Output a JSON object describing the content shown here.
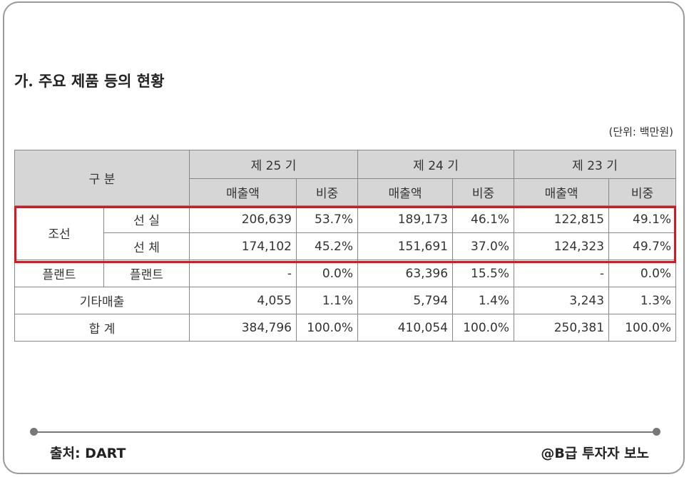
{
  "title": "가. 주요 제품 등의 현황",
  "unit": "(단위: 백만원)",
  "table": {
    "header_category": "구 분",
    "periods": [
      "제 25 기",
      "제 24 기",
      "제 23 기"
    ],
    "sub_headers": [
      "매출액",
      "비중"
    ],
    "rows": [
      {
        "group": "조선",
        "item": "선 실",
        "values": [
          "206,639",
          "53.7%",
          "189,173",
          "46.1%",
          "122,815",
          "49.1%"
        ]
      },
      {
        "group": "조선",
        "item": "선 체",
        "values": [
          "174,102",
          "45.2%",
          "151,691",
          "37.0%",
          "124,323",
          "49.7%"
        ]
      },
      {
        "group": "플랜트",
        "item": "플랜트",
        "values": [
          "-",
          "0.0%",
          "63,396",
          "15.5%",
          "-",
          "0.0%"
        ]
      },
      {
        "label": "기타매출",
        "values": [
          "4,055",
          "1.1%",
          "5,794",
          "1.4%",
          "3,243",
          "1.3%"
        ]
      },
      {
        "label": "합 계",
        "values": [
          "384,796",
          "100.0%",
          "410,054",
          "100.0%",
          "250,381",
          "100.0%"
        ]
      }
    ]
  },
  "highlight_color": "#e0141e",
  "footer": {
    "source": "출처: DART",
    "author": "@B급 투자자 보노"
  }
}
